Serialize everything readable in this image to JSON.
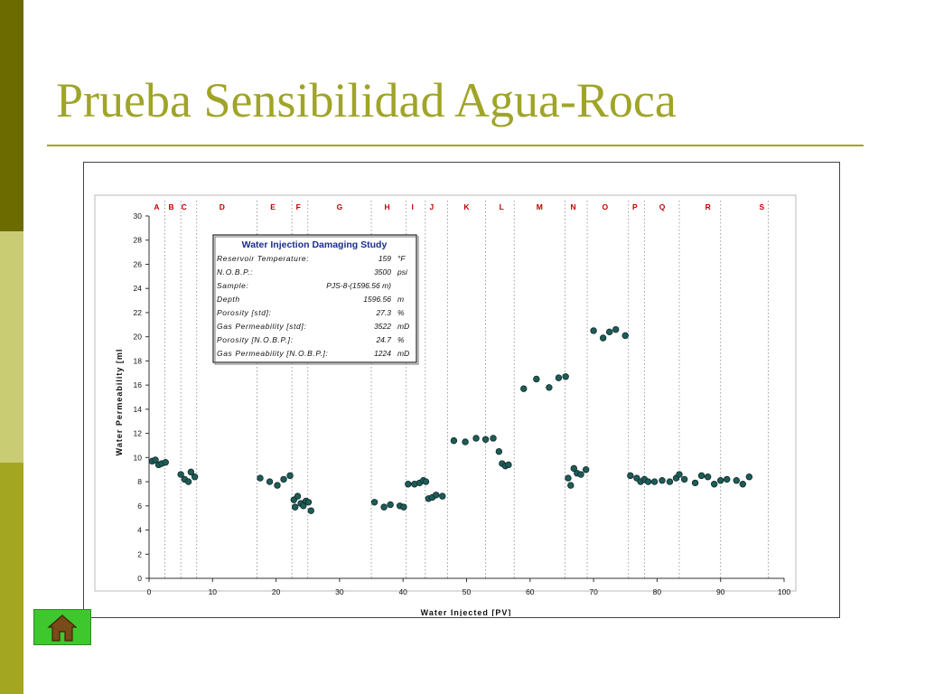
{
  "slide": {
    "title": "Prueba Sensibilidad Agua-Roca"
  },
  "icons": {
    "home": "home-icon"
  },
  "colors": {
    "title": "#a0a428",
    "point": "#1f5c58",
    "label": "#c00000"
  },
  "info_box": {
    "title": "Water Injection Damaging Study",
    "rows": [
      {
        "label": "Reservoir Temperature:",
        "value": "159",
        "unit": "°F"
      },
      {
        "label": "N.O.B.P.:",
        "value": "3500",
        "unit": "psi"
      },
      {
        "label": "Sample:",
        "value": "PJS-8-(1596.56 m)",
        "unit": ""
      },
      {
        "label": "Depth",
        "value": "1596.56",
        "unit": "m"
      },
      {
        "label": "Porosity [std]:",
        "value": "27.3",
        "unit": "%"
      },
      {
        "label": "Gas Permeability [std]:",
        "value": "3522",
        "unit": "mD"
      },
      {
        "label": "Porosity [N.O.B.P.]:",
        "value": "24.7",
        "unit": "%"
      },
      {
        "label": "Gas Permeability [N.O.B.P.]:",
        "value": "1224",
        "unit": "mD"
      }
    ]
  },
  "chart_data": {
    "type": "scatter",
    "title": "",
    "xlabel": "Water Injected [PV]",
    "ylabel": "Water Permeability [mI",
    "xlim": [
      0,
      100
    ],
    "ylim": [
      0,
      30
    ],
    "xticks": [
      0,
      10,
      20,
      30,
      40,
      50,
      60,
      70,
      80,
      90,
      100
    ],
    "yticks": [
      0,
      2,
      4,
      6,
      8,
      10,
      12,
      14,
      16,
      18,
      20,
      22,
      24,
      26,
      28,
      30
    ],
    "grid": "vertical dotted lines at stage boundaries",
    "stages": [
      {
        "label": "A",
        "x": 1.2
      },
      {
        "label": "B",
        "x": 3.5
      },
      {
        "label": "C",
        "x": 5.5
      },
      {
        "label": "D",
        "x": 11.5
      },
      {
        "label": "E",
        "x": 19.5
      },
      {
        "label": "F",
        "x": 23.5
      },
      {
        "label": "G",
        "x": 30.0
      },
      {
        "label": "H",
        "x": 37.5
      },
      {
        "label": "I",
        "x": 41.5
      },
      {
        "label": "J",
        "x": 44.5
      },
      {
        "label": "K",
        "x": 50.0
      },
      {
        "label": "L",
        "x": 55.5
      },
      {
        "label": "M",
        "x": 61.5
      },
      {
        "label": "N",
        "x": 66.8
      },
      {
        "label": "O",
        "x": 71.8
      },
      {
        "label": "P",
        "x": 76.5
      },
      {
        "label": "Q",
        "x": 80.8
      },
      {
        "label": "R",
        "x": 88.0
      },
      {
        "label": "S",
        "x": 96.5
      }
    ],
    "stage_boundaries": [
      2.5,
      5,
      7.5,
      17,
      22.5,
      25,
      35,
      40.5,
      43.5,
      47,
      53,
      57.5,
      65.5,
      69,
      75.5,
      78,
      83.5,
      90,
      97.5
    ],
    "points": [
      {
        "x": 0.5,
        "y": 9.7
      },
      {
        "x": 1.0,
        "y": 9.8
      },
      {
        "x": 1.5,
        "y": 9.4
      },
      {
        "x": 2.0,
        "y": 9.5
      },
      {
        "x": 2.6,
        "y": 9.6
      },
      {
        "x": 5.0,
        "y": 8.6
      },
      {
        "x": 5.6,
        "y": 8.2
      },
      {
        "x": 6.2,
        "y": 8.0
      },
      {
        "x": 6.6,
        "y": 8.8
      },
      {
        "x": 7.2,
        "y": 8.4
      },
      {
        "x": 17.5,
        "y": 8.3
      },
      {
        "x": 19.0,
        "y": 8.0
      },
      {
        "x": 20.2,
        "y": 7.7
      },
      {
        "x": 21.2,
        "y": 8.2
      },
      {
        "x": 22.2,
        "y": 8.5
      },
      {
        "x": 22.8,
        "y": 6.5
      },
      {
        "x": 23.0,
        "y": 5.9
      },
      {
        "x": 23.4,
        "y": 6.8
      },
      {
        "x": 23.9,
        "y": 6.2
      },
      {
        "x": 24.3,
        "y": 6.0
      },
      {
        "x": 24.7,
        "y": 6.4
      },
      {
        "x": 25.1,
        "y": 6.3
      },
      {
        "x": 25.5,
        "y": 5.6
      },
      {
        "x": 35.5,
        "y": 6.3
      },
      {
        "x": 37.0,
        "y": 5.9
      },
      {
        "x": 38.0,
        "y": 6.1
      },
      {
        "x": 39.5,
        "y": 6.0
      },
      {
        "x": 40.1,
        "y": 5.9
      },
      {
        "x": 40.8,
        "y": 7.8
      },
      {
        "x": 41.8,
        "y": 7.8
      },
      {
        "x": 42.6,
        "y": 7.9
      },
      {
        "x": 43.2,
        "y": 8.1
      },
      {
        "x": 43.6,
        "y": 8.0
      },
      {
        "x": 44.0,
        "y": 6.6
      },
      {
        "x": 44.6,
        "y": 6.7
      },
      {
        "x": 45.2,
        "y": 6.9
      },
      {
        "x": 46.2,
        "y": 6.8
      },
      {
        "x": 48.0,
        "y": 11.4
      },
      {
        "x": 49.8,
        "y": 11.3
      },
      {
        "x": 51.5,
        "y": 11.6
      },
      {
        "x": 53.0,
        "y": 11.5
      },
      {
        "x": 54.2,
        "y": 11.6
      },
      {
        "x": 55.1,
        "y": 10.5
      },
      {
        "x": 55.6,
        "y": 9.5
      },
      {
        "x": 56.1,
        "y": 9.3
      },
      {
        "x": 56.6,
        "y": 9.4
      },
      {
        "x": 59.0,
        "y": 15.7
      },
      {
        "x": 61.0,
        "y": 16.5
      },
      {
        "x": 63.0,
        "y": 15.8
      },
      {
        "x": 64.5,
        "y": 16.6
      },
      {
        "x": 65.6,
        "y": 16.7
      },
      {
        "x": 66.0,
        "y": 8.3
      },
      {
        "x": 66.4,
        "y": 7.7
      },
      {
        "x": 66.9,
        "y": 9.1
      },
      {
        "x": 67.4,
        "y": 8.7
      },
      {
        "x": 68.0,
        "y": 8.6
      },
      {
        "x": 68.8,
        "y": 9.0
      },
      {
        "x": 70.0,
        "y": 20.5
      },
      {
        "x": 71.5,
        "y": 19.9
      },
      {
        "x": 72.5,
        "y": 20.4
      },
      {
        "x": 73.5,
        "y": 20.6
      },
      {
        "x": 75.0,
        "y": 20.1
      },
      {
        "x": 75.8,
        "y": 8.5
      },
      {
        "x": 76.8,
        "y": 8.3
      },
      {
        "x": 77.4,
        "y": 8.0
      },
      {
        "x": 78.0,
        "y": 8.2
      },
      {
        "x": 78.6,
        "y": 8.0
      },
      {
        "x": 79.6,
        "y": 8.0
      },
      {
        "x": 80.8,
        "y": 8.1
      },
      {
        "x": 82.0,
        "y": 8.0
      },
      {
        "x": 83.0,
        "y": 8.3
      },
      {
        "x": 83.5,
        "y": 8.6
      },
      {
        "x": 84.3,
        "y": 8.2
      },
      {
        "x": 86.0,
        "y": 7.9
      },
      {
        "x": 87.0,
        "y": 8.5
      },
      {
        "x": 88.0,
        "y": 8.4
      },
      {
        "x": 89.0,
        "y": 7.8
      },
      {
        "x": 90.0,
        "y": 8.1
      },
      {
        "x": 91.0,
        "y": 8.2
      },
      {
        "x": 92.5,
        "y": 8.1
      },
      {
        "x": 93.5,
        "y": 7.8
      },
      {
        "x": 94.5,
        "y": 8.4
      }
    ]
  }
}
